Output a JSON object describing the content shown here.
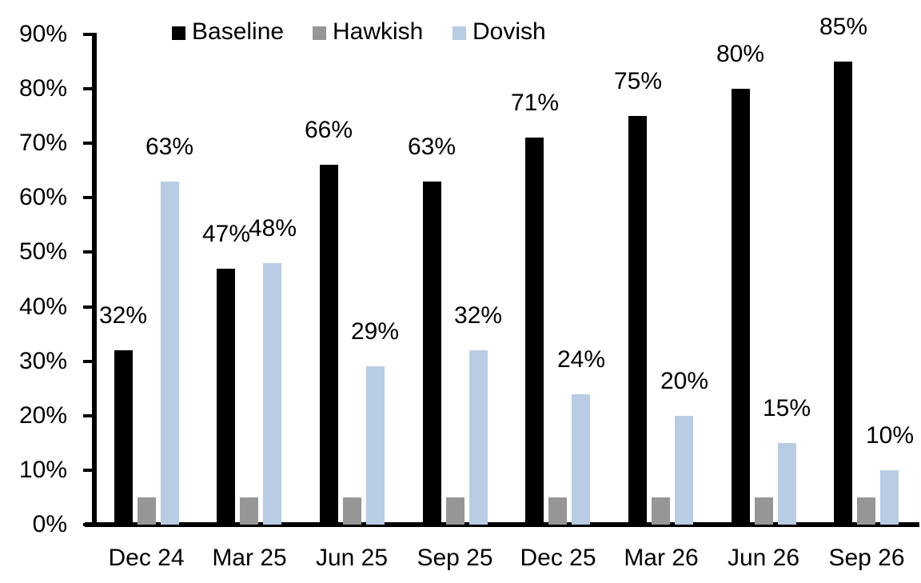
{
  "chart_data": {
    "type": "bar",
    "title": "",
    "categories": [
      "Dec 24",
      "Mar 25",
      "Jun 25",
      "Sep 25",
      "Dec 25",
      "Mar 26",
      "Jun 26",
      "Sep 26"
    ],
    "series": [
      {
        "name": "Baseline",
        "color": "#000000",
        "values": [
          32,
          47,
          66,
          63,
          71,
          75,
          80,
          85
        ],
        "data_labels": [
          "32%",
          "47%",
          "66%",
          "63%",
          "71%",
          "75%",
          "80%",
          "85%"
        ],
        "show_labels": true
      },
      {
        "name": "Hawkish",
        "color": "#969696",
        "values": [
          5,
          5,
          5,
          5,
          5,
          5,
          5,
          5
        ],
        "data_labels": [],
        "show_labels": false
      },
      {
        "name": "Dovish",
        "color": "#b8cce4",
        "values": [
          63,
          48,
          29,
          32,
          24,
          20,
          15,
          10
        ],
        "data_labels": [
          "63%",
          "48%",
          "29%",
          "32%",
          "24%",
          "20%",
          "15%",
          "10%"
        ],
        "show_labels": true
      }
    ],
    "value_suffix": "%",
    "y_axis": {
      "min": 0,
      "max": 90,
      "tick_step": 10,
      "tick_labels": [
        "0%",
        "10%",
        "20%",
        "30%",
        "40%",
        "50%",
        "60%",
        "70%",
        "80%",
        "90%"
      ]
    },
    "xlabel": "",
    "ylabel": "",
    "grid": "off",
    "legend": {
      "position": "top",
      "entries": [
        "Baseline",
        "Hawkish",
        "Dovish"
      ]
    }
  }
}
